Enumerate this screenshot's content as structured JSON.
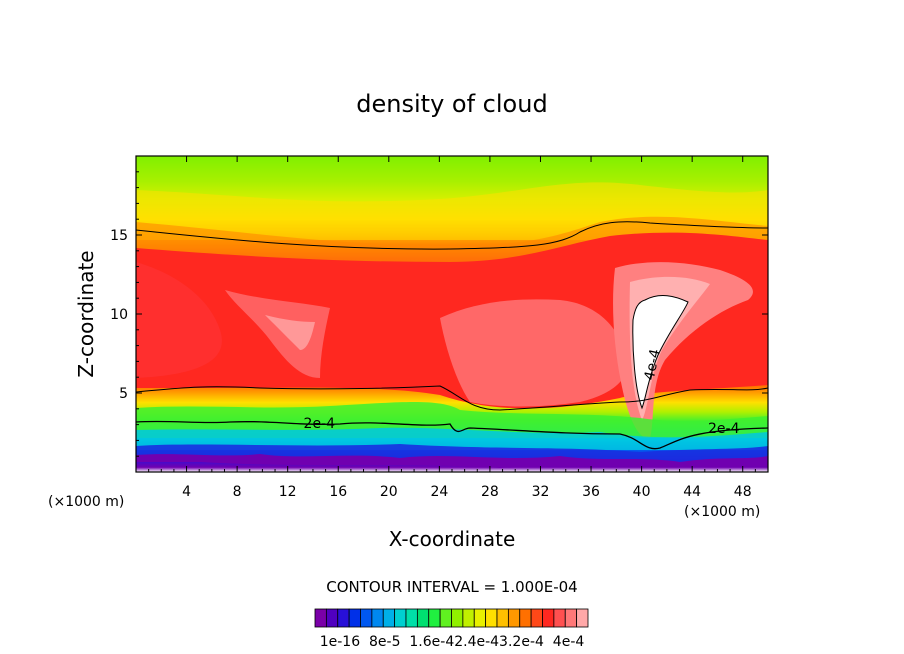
{
  "chart_data": {
    "type": "heatmap",
    "title": "density of cloud",
    "xlabel": "X-coordinate",
    "ylabel": "Z-coordinate",
    "x_unit_note_left": "(×1000 m)",
    "x_unit_note_right": "(×1000 m)",
    "xlim": [
      0,
      50
    ],
    "ylim": [
      0,
      20
    ],
    "x_ticks": [
      4,
      8,
      12,
      16,
      20,
      24,
      28,
      32,
      36,
      40,
      44,
      48
    ],
    "x_tick_labels": [
      "4",
      "8",
      "12",
      "16",
      "20",
      "24",
      "28",
      "32",
      "36",
      "40",
      "44",
      "48"
    ],
    "y_ticks": [
      5,
      10,
      15
    ],
    "y_tick_labels": [
      "5",
      "10",
      "15"
    ],
    "contour_interval_label": "CONTOUR INTERVAL = 1.000E-04",
    "contour_labels": [
      {
        "text": "2e-4",
        "x": 14.5,
        "y": 3.1,
        "angle": 0
      },
      {
        "text": "2e-4",
        "x": 46.5,
        "y": 2.8,
        "angle": 0
      },
      {
        "text": "4e-4",
        "x": 40.8,
        "y": 6.8,
        "angle": -78
      }
    ],
    "colorbar": {
      "colors": [
        "#7a00a8",
        "#5000c0",
        "#2810d8",
        "#0030e8",
        "#0058f0",
        "#0088f0",
        "#00b0e8",
        "#00d0d0",
        "#00e0a8",
        "#00e070",
        "#20f040",
        "#60f020",
        "#90f000",
        "#c0f000",
        "#e8f000",
        "#ffe000",
        "#ffc000",
        "#ff9800",
        "#ff7000",
        "#ff4818",
        "#ff2820",
        "#ff5050",
        "#ff7878",
        "#ffa8a8"
      ],
      "tick_labels": [
        "1e-16",
        "8e-5",
        "1.6e-4",
        "2.4e-4",
        "3.2e-4",
        "4e-4"
      ],
      "tick_label_text": "1e-16  8e-5  1.6e-42.4e-43.2e-4  4e-4"
    },
    "field_description_values": {
      "upper_band_top_z": 20,
      "max_white_region_value": 0.0004
    }
  }
}
